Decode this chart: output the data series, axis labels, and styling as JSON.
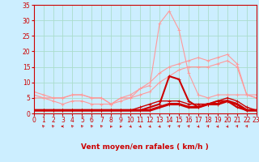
{
  "title": "",
  "xlabel": "Vent moyen/en rafales ( km/h )",
  "bg_color": "#cceeff",
  "grid_color": "#aaddcc",
  "x": [
    0,
    1,
    2,
    3,
    4,
    5,
    6,
    7,
    8,
    9,
    10,
    11,
    12,
    13,
    14,
    15,
    16,
    17,
    18,
    19,
    20,
    21,
    22,
    23
  ],
  "line_peak": [
    7,
    6,
    5,
    5,
    6,
    6,
    5,
    5,
    3,
    5,
    5,
    8,
    9,
    29,
    33,
    27,
    13,
    6,
    5,
    6,
    6,
    6,
    6,
    6
  ],
  "line_high1": [
    5,
    5,
    4,
    3,
    4,
    4,
    3,
    3,
    3,
    5,
    6,
    8,
    10,
    13,
    15,
    16,
    17,
    18,
    17,
    18,
    19,
    16,
    6,
    5
  ],
  "line_high2": [
    6,
    5,
    5,
    5,
    6,
    6,
    5,
    5,
    3,
    4,
    5,
    6,
    7,
    10,
    12,
    14,
    15,
    15,
    15,
    16,
    17,
    15,
    6,
    5
  ],
  "line_mid": [
    1,
    1,
    1,
    1,
    1,
    1,
    1,
    1,
    1,
    1,
    1,
    2,
    3,
    4,
    4,
    4,
    3,
    3,
    3,
    4,
    5,
    4,
    2,
    1
  ],
  "line_low1": [
    1,
    1,
    1,
    1,
    1,
    1,
    1,
    1,
    1,
    1,
    1,
    1,
    2,
    3,
    12,
    11,
    4,
    2,
    3,
    4,
    4,
    2,
    1,
    1
  ],
  "line_low2": [
    1,
    1,
    1,
    1,
    1,
    1,
    1,
    1,
    1,
    1,
    1,
    1,
    1,
    2,
    3,
    3,
    2,
    2,
    3,
    3,
    4,
    3,
    1,
    1
  ],
  "color_pink": "#ff9999",
  "color_red": "#cc0000",
  "ylim": [
    0,
    35
  ],
  "xlim": [
    0,
    23
  ],
  "yticks": [
    0,
    5,
    10,
    15,
    20,
    25,
    30,
    35
  ],
  "xticks": [
    0,
    1,
    2,
    3,
    4,
    5,
    6,
    7,
    8,
    9,
    10,
    11,
    12,
    13,
    14,
    15,
    16,
    17,
    18,
    19,
    20,
    21,
    22,
    23
  ],
  "arrow_angles": [
    225,
    225,
    225,
    270,
    225,
    225,
    225,
    225,
    315,
    315,
    45,
    45,
    45,
    45,
    135,
    135,
    135,
    45,
    135,
    45,
    45,
    135,
    135,
    135
  ]
}
